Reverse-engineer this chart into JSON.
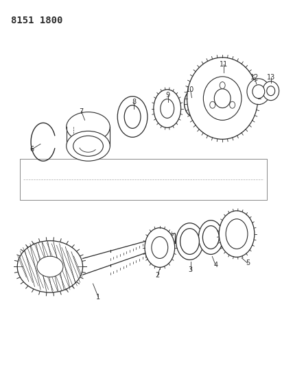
{
  "title": "8151 1800",
  "bg_color": "#ffffff",
  "line_color": "#2a2a2a",
  "figsize": [
    4.11,
    5.33
  ],
  "dpi": 100
}
